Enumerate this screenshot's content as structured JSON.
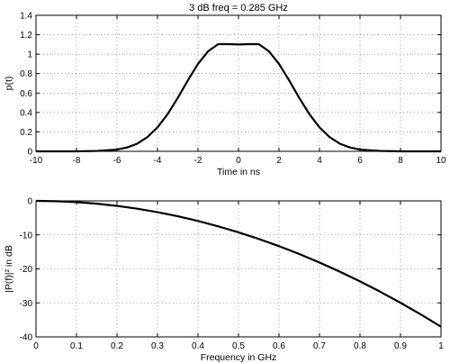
{
  "chart_data": [
    {
      "type": "line",
      "title": "3 dB freq = 0.285 GHz",
      "xlabel": "Time in ns",
      "ylabel": "p(t)",
      "xlim": [
        -10,
        10
      ],
      "ylim": [
        0,
        1.4
      ],
      "x_ticks": [
        "-10",
        "-8",
        "-6",
        "-4",
        "-2",
        "0",
        "2",
        "4",
        "6",
        "8",
        "10"
      ],
      "y_ticks": [
        "0",
        "0.2",
        "0.4",
        "0.6",
        "0.8",
        "1",
        "1.2",
        "1.4"
      ],
      "grid": true,
      "series": [
        {
          "x": [
            -10,
            -9,
            -8,
            -7,
            -6,
            -5.5,
            -5,
            -4.5,
            -4,
            -3.5,
            -3,
            -2.5,
            -2,
            -1.5,
            -1,
            -0.5,
            0,
            0.5,
            1,
            1.5,
            2,
            2.5,
            3,
            3.5,
            4,
            4.5,
            5,
            5.5,
            6,
            7,
            8,
            9,
            10
          ],
          "y": [
            0.0,
            0.0,
            0.0,
            0.004,
            0.018,
            0.04,
            0.079,
            0.146,
            0.246,
            0.383,
            0.55,
            0.731,
            0.9,
            1.03,
            1.103,
            1.103,
            1.1,
            1.103,
            1.103,
            1.03,
            0.9,
            0.731,
            0.55,
            0.383,
            0.246,
            0.146,
            0.079,
            0.04,
            0.018,
            0.004,
            0.0,
            0.0,
            0.0
          ]
        }
      ]
    },
    {
      "type": "line",
      "title": "",
      "xlabel": "Frequency in GHz",
      "ylabel": "|P(f)|² in dB",
      "xlim": [
        0,
        1
      ],
      "ylim": [
        -40,
        0
      ],
      "x_ticks": [
        "0",
        "0.1",
        "0.2",
        "0.3",
        "0.4",
        "0.5",
        "0.6",
        "0.7",
        "0.8",
        "0.9",
        "1"
      ],
      "y_ticks": [
        "-40",
        "-30",
        "-20",
        "-10",
        "0"
      ],
      "grid": true,
      "series": [
        {
          "x": [
            0,
            0.05,
            0.1,
            0.15,
            0.2,
            0.25,
            0.3,
            0.35,
            0.4,
            0.45,
            0.5,
            0.55,
            0.6,
            0.65,
            0.7,
            0.75,
            0.8,
            0.85,
            0.9,
            0.95,
            1
          ],
          "y": [
            0,
            -0.09,
            -0.37,
            -0.83,
            -1.48,
            -2.31,
            -3.33,
            -4.53,
            -5.92,
            -7.49,
            -9.25,
            -11.19,
            -13.32,
            -15.63,
            -18.13,
            -20.81,
            -23.68,
            -26.73,
            -29.97,
            -33.39,
            -37.0
          ]
        }
      ]
    }
  ]
}
